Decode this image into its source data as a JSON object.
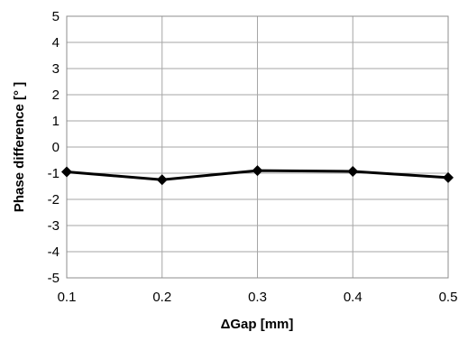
{
  "chart_data": {
    "type": "line",
    "title": "",
    "xlabel": "ΔGap [mm]",
    "ylabel": "Phase difference [°  ]",
    "x": [
      0.1,
      0.2,
      0.3,
      0.4,
      0.5
    ],
    "x_tick_labels": [
      "0.1",
      "0.2",
      "0.3",
      "0.4",
      "0.5"
    ],
    "xlim": [
      0.1,
      0.5
    ],
    "ylim": [
      -5,
      5
    ],
    "y_tick_labels": [
      "5",
      "4",
      "3",
      "2",
      "1",
      "0",
      "-1",
      "-2",
      "-3",
      "-4",
      "-5"
    ],
    "grid": true,
    "legend": "none",
    "series": [
      {
        "values": [
          -0.95,
          -1.25,
          -0.9,
          -0.93,
          -1.17
        ],
        "color": "#000000",
        "marker": "diamond"
      }
    ]
  }
}
